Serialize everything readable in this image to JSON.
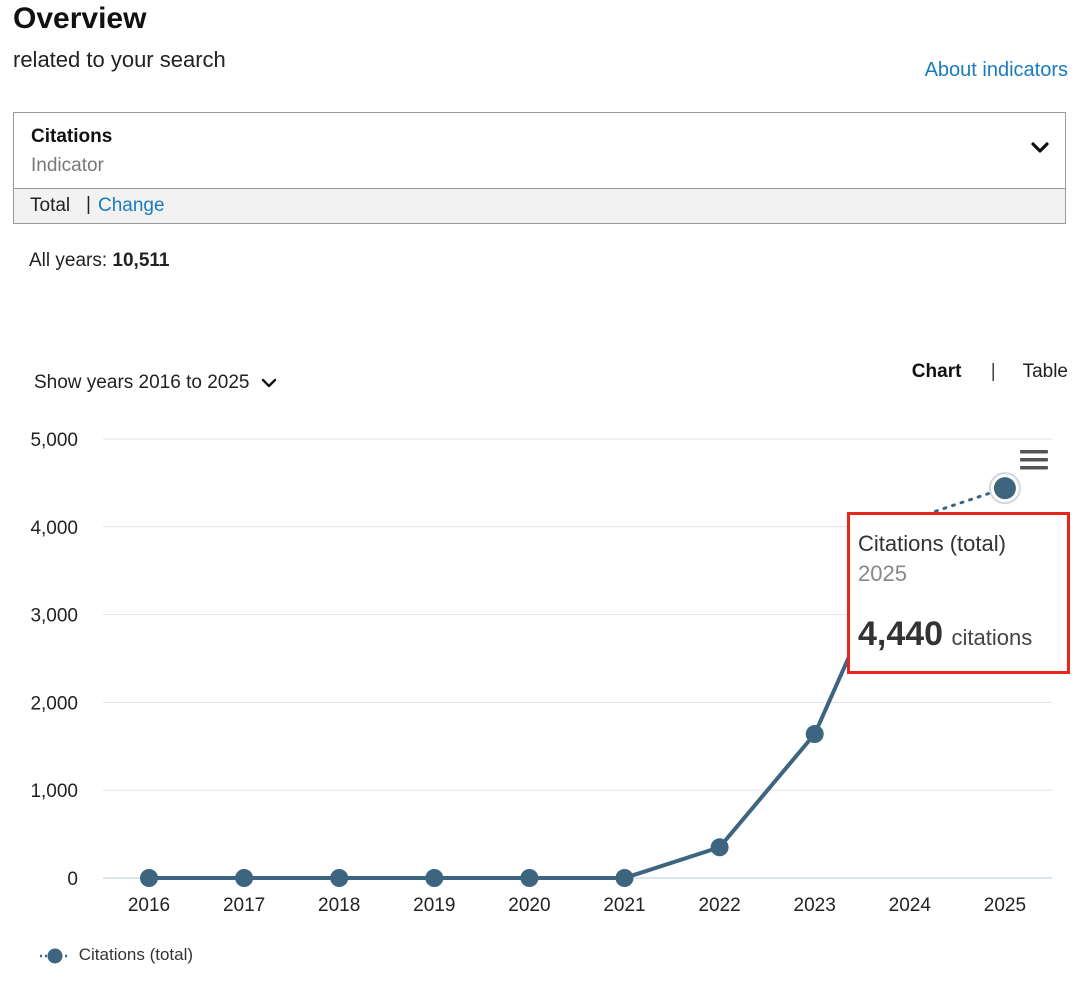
{
  "header": {
    "title": "Overview",
    "subtitle": "related to your search",
    "about_link": "About indicators"
  },
  "indicator": {
    "name": "Citations",
    "label": "Indicator",
    "scope": "Total",
    "separator": "|",
    "change_label": "Change"
  },
  "summary": {
    "all_years_label": "All years:",
    "all_years_value": "10,511"
  },
  "controls": {
    "years_range": "Show years 2016 to 2025",
    "chart_label": "Chart",
    "separator": "|",
    "table_label": "Table"
  },
  "tooltip": {
    "title": "Citations (total)",
    "year": "2025",
    "value": "4,440",
    "unit": "citations"
  },
  "legend": {
    "label": "Citations (total)"
  },
  "colors": {
    "series": "#3d6580",
    "highlight": "#e8261c",
    "link": "#1a7bbf"
  },
  "chart_data": {
    "type": "line",
    "title": "",
    "xlabel": "",
    "ylabel": "",
    "categories": [
      "2016",
      "2017",
      "2018",
      "2019",
      "2020",
      "2021",
      "2022",
      "2023",
      "2024",
      "2025"
    ],
    "series": [
      {
        "name": "Citations (total)",
        "values": [
          0,
          0,
          0,
          0,
          0,
          0,
          350,
          1640,
          4080,
          4440
        ]
      }
    ],
    "ylim": [
      0,
      5000
    ],
    "yticks": [
      "0",
      "1,000",
      "2,000",
      "3,000",
      "4,000",
      "5,000"
    ],
    "grid": true,
    "legend": "bottom-left"
  }
}
